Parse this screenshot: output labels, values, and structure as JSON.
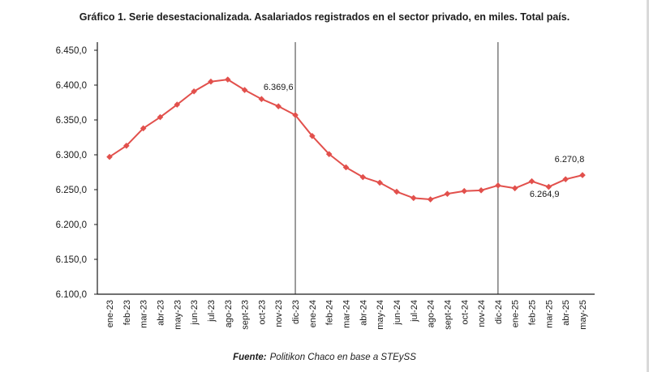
{
  "title": "Gráfico 1. Serie desestacionalizada. Asalariados registrados en el sector privado, en miles. Total país.",
  "source": {
    "prefix": "Fuente:",
    "text": "Politikon Chaco en base a STEySS"
  },
  "chart_data": {
    "type": "line",
    "title": "Gráfico 1. Serie desestacionalizada. Asalariados registrados en el sector privado, en miles. Total país.",
    "categories": [
      "ene-23",
      "feb-23",
      "mar-23",
      "abr-23",
      "may-23",
      "jun-23",
      "jul-23",
      "ago-23",
      "sept-23",
      "oct-23",
      "nov-23",
      "dic-23",
      "ene-24",
      "feb-24",
      "mar-24",
      "abr-24",
      "may-24",
      "jun-24",
      "jul-24",
      "ago-24",
      "sept-24",
      "oct-24",
      "nov-24",
      "dic-24",
      "ene-25",
      "feb-25",
      "mar-25",
      "abr-25",
      "may-25"
    ],
    "values": [
      6297,
      6313,
      6338,
      6354,
      6372,
      6391,
      6405,
      6408,
      6393,
      6380,
      6369.6,
      6357,
      6327,
      6301,
      6282,
      6268,
      6260,
      6247,
      6238,
      6236,
      6244,
      6248,
      6249,
      6256,
      6252,
      6262,
      6254,
      6264.9,
      6270.8
    ],
    "line_color": "#e2504c",
    "marker": "diamond",
    "ylim": [
      6100,
      6450
    ],
    "ytick_step": 50,
    "ytick_labels": [
      "6.450,0",
      "6.400,0",
      "6.350,0",
      "6.300,0",
      "6.250,0",
      "6.200,0",
      "6.150,0",
      "6.100,0"
    ],
    "xlabel": "",
    "ylabel": "",
    "grid": false,
    "legend": "none",
    "vertical_reference_lines": [
      "dic-23",
      "dic-24"
    ],
    "annotations": [
      {
        "text": "6.369,6",
        "category": "nov-23",
        "value": 6369.6,
        "placement": "above"
      },
      {
        "text": "6.264,9",
        "category": "abr-25",
        "value": 6264.9,
        "placement": "below-left"
      },
      {
        "text": "6.270,8",
        "category": "may-25",
        "value": 6270.8,
        "placement": "above-left"
      }
    ],
    "source": "Fuente: Politikon Chaco en base a STEySS"
  }
}
